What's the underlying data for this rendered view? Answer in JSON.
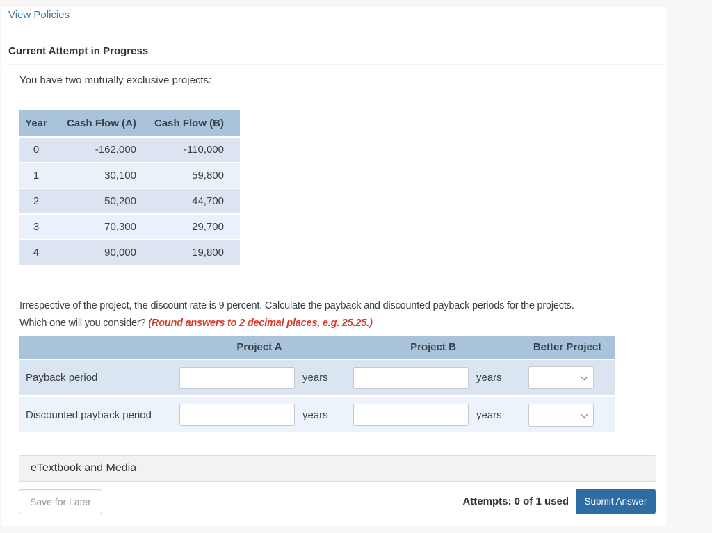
{
  "header": {
    "view_policies_label": "View Policies",
    "attempt_status": "Current Attempt in Progress"
  },
  "problem": {
    "intro": "You have two mutually exclusive projects:",
    "question_sentence_1": "Irrespective of the project, the discount rate is 9 percent. Calculate the payback and discounted payback periods for the projects.",
    "question_sentence_2": "Which one will you consider?",
    "rounding_note": "(Round answers to 2 decimal places, e.g. 25.25.)"
  },
  "cashflow_table": {
    "headers": {
      "year": "Year",
      "a": "Cash Flow (A)",
      "b": "Cash Flow (B)"
    },
    "rows": [
      {
        "year": "0",
        "a": "-162,000",
        "b": "-110,000"
      },
      {
        "year": "1",
        "a": "30,100",
        "b": "59,800"
      },
      {
        "year": "2",
        "a": "50,200",
        "b": "44,700"
      },
      {
        "year": "3",
        "a": "70,300",
        "b": "29,700"
      },
      {
        "year": "4",
        "a": "90,000",
        "b": "19,800"
      }
    ]
  },
  "answer_table": {
    "headers": {
      "project_a": "Project A",
      "project_b": "Project B",
      "better": "Better Project"
    },
    "rows": [
      {
        "label": "Payback period",
        "value_a": "",
        "unit_a": "years",
        "value_b": "",
        "unit_b": "years",
        "better_selected": ""
      },
      {
        "label": "Discounted payback period",
        "value_a": "",
        "unit_a": "years",
        "value_b": "",
        "unit_b": "years",
        "better_selected": ""
      }
    ]
  },
  "footer": {
    "etextbook_label": "eTextbook and Media",
    "save_for_later_label": "Save for Later",
    "attempts_label": "Attempts: 0 of 1 used",
    "submit_label": "Submit Answer"
  },
  "colors": {
    "link_blue": "#3179a8",
    "table_header_bg": "#a9c3da",
    "row_dark_bg": "#dbe4f1",
    "row_light_bg": "#edf3fb",
    "note_red": "#d93a2b",
    "submit_bg": "#2e6da3",
    "page_bg": "#f7f7f7"
  }
}
